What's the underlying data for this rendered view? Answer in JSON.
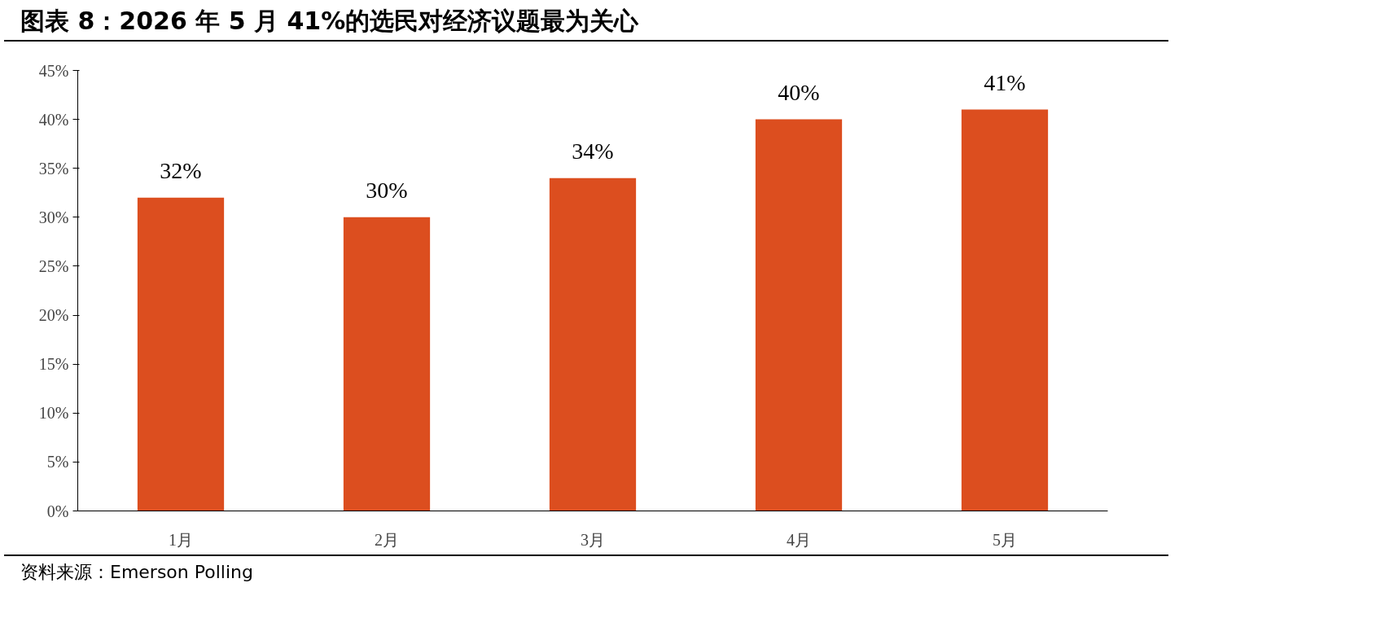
{
  "chart_data": {
    "type": "bar",
    "title": "图表 8：2026 年 5 月 41%的选民对经济议题最为关心",
    "categories": [
      "1月",
      "2月",
      "3月",
      "4月",
      "5月"
    ],
    "values": [
      32,
      30,
      34,
      40,
      41
    ],
    "value_labels": [
      "32%",
      "30%",
      "34%",
      "40%",
      "41%"
    ],
    "color": "#dc4e1f",
    "ylim": [
      0,
      45
    ],
    "yticks": [
      {
        "value": 0,
        "label": "0%"
      },
      {
        "value": 5,
        "label": "5%"
      },
      {
        "value": 10,
        "label": "10%"
      },
      {
        "value": 15,
        "label": "15%"
      },
      {
        "value": 20,
        "label": "20%"
      },
      {
        "value": 25,
        "label": "25%"
      },
      {
        "value": 30,
        "label": "30%"
      },
      {
        "value": 35,
        "label": "35%"
      },
      {
        "value": 40,
        "label": "40%"
      },
      {
        "value": 45,
        "label": "45%"
      }
    ],
    "grid": false,
    "annotations": [
      "资料来源：Emerson Polling"
    ]
  }
}
